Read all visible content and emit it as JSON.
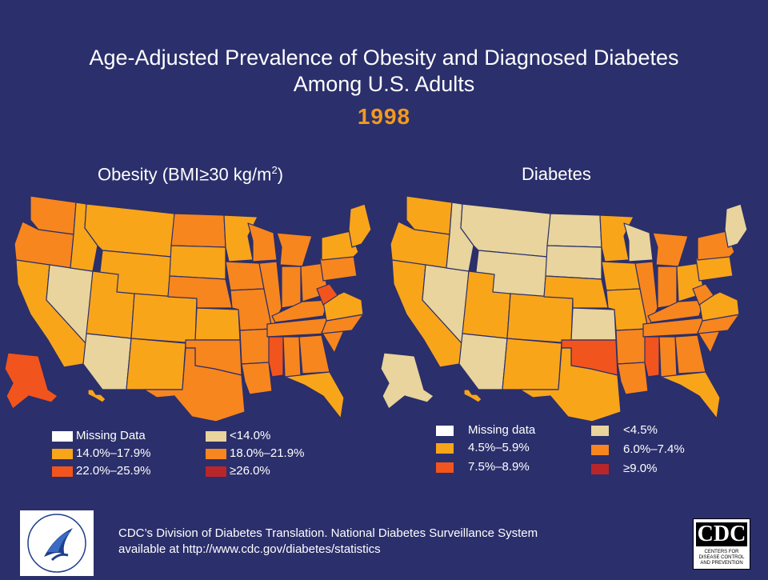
{
  "title_line1": "Age-Adjusted Prevalence of Obesity and Diagnosed Diabetes",
  "title_line2": "Among U.S. Adults",
  "year": "1998",
  "colors": {
    "background": "#2b2f6b",
    "missing": "#ffffff",
    "c1": "#e8d49c",
    "c2": "#f9a51a",
    "c3": "#f7861f",
    "c4": "#f2541d",
    "c5": "#b9262a",
    "year": "#f29a1e"
  },
  "obesity": {
    "title": "Obesity (BMI≥30 kg/m",
    "title_sup": "2",
    "title_end": ")",
    "legend": [
      {
        "label": "Missing Data",
        "color": "#ffffff"
      },
      {
        "label": "14.0%–17.9%",
        "color": "#f9a51a"
      },
      {
        "label": "22.0%–25.9%",
        "color": "#f2541d"
      },
      {
        "label": "<14.0%",
        "color": "#e8d49c"
      },
      {
        "label": "18.0%–21.9%",
        "color": "#f7861f"
      },
      {
        "label": "≥26.0%",
        "color": "#b9262a"
      }
    ]
  },
  "diabetes": {
    "title": "Diabetes",
    "legend": [
      {
        "label": "Missing data",
        "color": "#ffffff"
      },
      {
        "label": "4.5%–5.9%",
        "color": "#f9a51a"
      },
      {
        "label": "7.5%–8.9%",
        "color": "#f2541d"
      },
      {
        "label": "<4.5%",
        "color": "#e8d49c"
      },
      {
        "label": "6.0%–7.4%",
        "color": "#f7861f"
      },
      {
        "label": "≥9.0%",
        "color": "#b9262a"
      }
    ]
  },
  "footer_line1": "CDC’s Division of Diabetes Translation. National Diabetes Surveillance System",
  "footer_line2": "available at http://www.cdc.gov/diabetes/statistics",
  "cdc_logo_text": "CDC",
  "cdc_logo_small": "CENTERS FOR DISEASE CONTROL AND PREVENTION",
  "hhs_logo_text": "DEPARTMENT OF HEALTH & HUMAN SERVICES · USA",
  "map_states": {
    "obesity": {
      "WA": "c3",
      "OR": "c3",
      "CA": "c2",
      "NV": "c1",
      "ID": "c2",
      "MT": "c2",
      "WY": "c2",
      "UT": "c2",
      "AZ": "c1",
      "CO": "c2",
      "NM": "c2",
      "ND": "c3",
      "SD": "c2",
      "NE": "c3",
      "KS": "c2",
      "OK": "c3",
      "TX": "c3",
      "MN": "c2",
      "IA": "c3",
      "MO": "c3",
      "AR": "c3",
      "LA": "c3",
      "WI": "c3",
      "IL": "c3",
      "MI": "c3",
      "IN": "c3",
      "OH": "c3",
      "KY": "c3",
      "TN": "c3",
      "MS": "c4",
      "AL": "c3",
      "GA": "c3",
      "FL": "c2",
      "SC": "c3",
      "NC": "c3",
      "VA": "c2",
      "WV": "c4",
      "PA": "c3",
      "NY": "c2",
      "NE_states": "c2",
      "AK": "c4",
      "HI": "c2"
    },
    "diabetes": {
      "WA": "c2",
      "OR": "c2",
      "CA": "c2",
      "NV": "c1",
      "ID": "c1",
      "MT": "c1",
      "WY": "c1",
      "UT": "c2",
      "AZ": "c1",
      "CO": "c2",
      "NM": "c2",
      "ND": "c1",
      "SD": "c1",
      "NE": "c2",
      "KS": "c1",
      "OK": "c4",
      "TX": "c2",
      "MN": "c2",
      "IA": "c2",
      "MO": "c2",
      "AR": "c3",
      "LA": "c3",
      "WI": "c1",
      "IL": "c3",
      "MI": "c3",
      "IN": "c3",
      "OH": "c2",
      "KY": "c3",
      "TN": "c3",
      "MS": "c4",
      "AL": "c3",
      "GA": "c3",
      "FL": "c2",
      "SC": "c3",
      "NC": "c3",
      "VA": "c2",
      "WV": "c3",
      "PA": "c2",
      "NY": "c3",
      "NE_states": "c1",
      "AK": "c1",
      "HI": "c2"
    }
  }
}
